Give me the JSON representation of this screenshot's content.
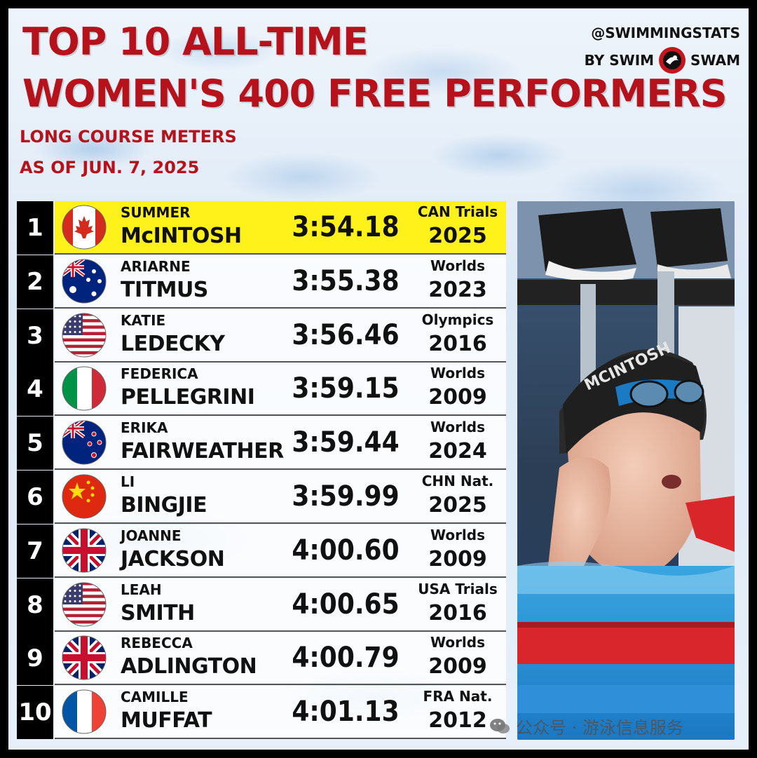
{
  "header": {
    "title_line1": "TOP 10 ALL-TIME",
    "title_line2": "WOMEN'S 400 FREE PERFORMERS",
    "subtitle_line1": "LONG COURSE METERS",
    "subtitle_line2": "AS OF JUN. 7, 2025"
  },
  "brand": {
    "handle": "@SWIMMINGSTATS",
    "by": "BY SWIM",
    "swam": "SWAM"
  },
  "colors": {
    "title_red": "#b5121b",
    "highlight_yellow": "#fff21b",
    "rank_black": "#000000"
  },
  "rows": [
    {
      "rank": "1",
      "first": "SUMMER",
      "last": "McINTOSH",
      "time": "3:54.18",
      "meet": "CAN Trials",
      "year": "2025",
      "flag": "canada-flag-icon"
    },
    {
      "rank": "2",
      "first": "ARIARNE",
      "last": "TITMUS",
      "time": "3:55.38",
      "meet": "Worlds",
      "year": "2023",
      "flag": "australia-flag-icon"
    },
    {
      "rank": "3",
      "first": "KATIE",
      "last": "LEDECKY",
      "time": "3:56.46",
      "meet": "Olympics",
      "year": "2016",
      "flag": "usa-flag-icon"
    },
    {
      "rank": "4",
      "first": "FEDERICA",
      "last": "PELLEGRINI",
      "time": "3:59.15",
      "meet": "Worlds",
      "year": "2009",
      "flag": "italy-flag-icon"
    },
    {
      "rank": "5",
      "first": "ERIKA",
      "last": "FAIRWEATHER",
      "time": "3:59.44",
      "meet": "Worlds",
      "year": "2024",
      "flag": "new-zealand-flag-icon"
    },
    {
      "rank": "6",
      "first": "LI",
      "last": "BINGJIE",
      "time": "3:59.99",
      "meet": "CHN Nat.",
      "year": "2025",
      "flag": "china-flag-icon"
    },
    {
      "rank": "7",
      "first": "JOANNE",
      "last": "JACKSON",
      "time": "4:00.60",
      "meet": "Worlds",
      "year": "2009",
      "flag": "uk-flag-icon"
    },
    {
      "rank": "8",
      "first": "LEAH",
      "last": "SMITH",
      "time": "4:00.65",
      "meet": "USA Trials",
      "year": "2016",
      "flag": "usa-flag-icon"
    },
    {
      "rank": "9",
      "first": "REBECCA",
      "last": "ADLINGTON",
      "time": "4:00.79",
      "meet": "Worlds",
      "year": "2009",
      "flag": "uk-flag-icon"
    },
    {
      "rank": "10",
      "first": "CAMILLE",
      "last": "MUFFAT",
      "time": "4:01.13",
      "meet": "FRA Nat.",
      "year": "2012",
      "flag": "france-flag-icon"
    }
  ],
  "watermark": {
    "text": "公众号 · 游泳信息服务"
  }
}
